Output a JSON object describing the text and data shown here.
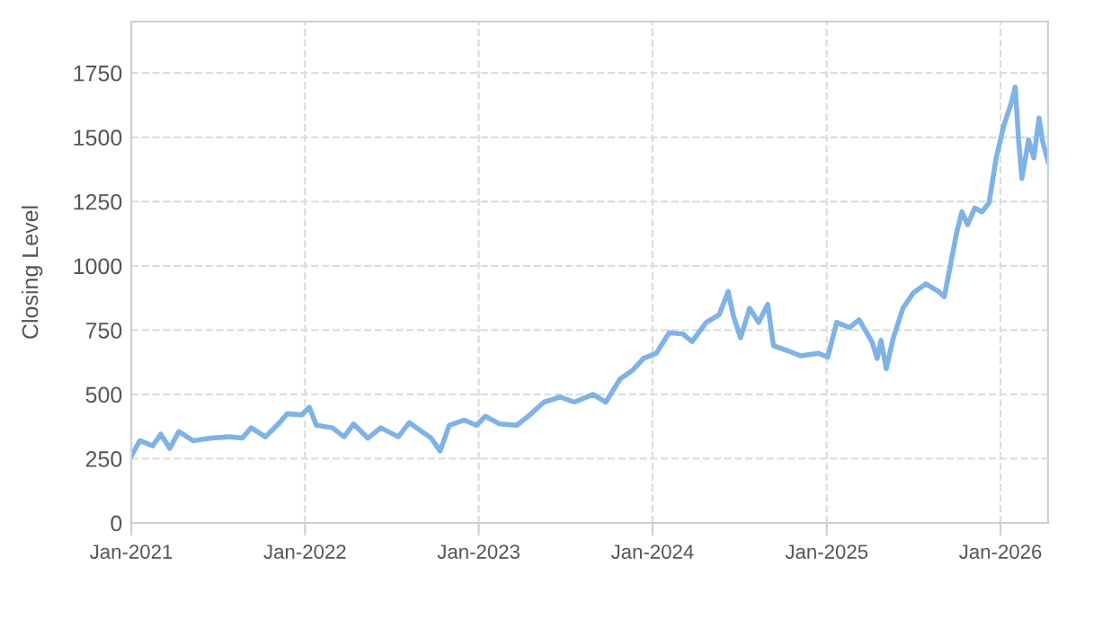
{
  "chart_data": {
    "type": "line",
    "ylabel": "Closing Level",
    "x": [
      "2021-01-01",
      "2021-01-19",
      "2021-02-15",
      "2021-03-04",
      "2021-03-23",
      "2021-04-11",
      "2021-05-11",
      "2021-06-18",
      "2021-07-26",
      "2021-08-22",
      "2021-09-10",
      "2021-10-10",
      "2021-11-06",
      "2021-11-25",
      "2021-12-25",
      "2022-01-10",
      "2022-01-25",
      "2022-02-28",
      "2022-03-24",
      "2022-04-13",
      "2022-05-13",
      "2022-06-09",
      "2022-07-16",
      "2022-08-08",
      "2022-09-04",
      "2022-09-23",
      "2022-10-12",
      "2022-10-31",
      "2022-12-01",
      "2022-12-27",
      "2023-01-15",
      "2023-02-14",
      "2023-03-22",
      "2023-04-18",
      "2023-05-18",
      "2023-06-21",
      "2023-07-21",
      "2023-08-29",
      "2023-09-25",
      "2023-10-25",
      "2023-11-21",
      "2023-12-13",
      "2024-01-09",
      "2024-02-05",
      "2024-03-05",
      "2024-03-24",
      "2024-04-23",
      "2024-05-20",
      "2024-06-08",
      "2024-06-19",
      "2024-07-04",
      "2024-07-23",
      "2024-08-11",
      "2024-08-30",
      "2024-09-11",
      "2024-10-11",
      "2024-11-07",
      "2024-12-14",
      "2025-01-03",
      "2025-01-22",
      "2025-02-18",
      "2025-03-10",
      "2025-04-06",
      "2025-04-17",
      "2025-04-25",
      "2025-05-06",
      "2025-05-21",
      "2025-06-10",
      "2025-07-02",
      "2025-07-28",
      "2025-08-24",
      "2025-09-05",
      "2025-09-16",
      "2025-10-01",
      "2025-10-12",
      "2025-10-24",
      "2025-11-08",
      "2025-11-23",
      "2025-12-08",
      "2025-12-23",
      "2026-01-08",
      "2026-01-23",
      "2026-02-01",
      "2026-02-08",
      "2026-02-15",
      "2026-03-01",
      "2026-03-12",
      "2026-03-23",
      "2026-03-31",
      "2026-04-11"
    ],
    "series": [
      {
        "color": "#7fb3e6",
        "values": [
          260,
          320,
          300,
          345,
          290,
          355,
          320,
          330,
          335,
          330,
          370,
          335,
          385,
          425,
          420,
          450,
          380,
          370,
          335,
          385,
          330,
          370,
          335,
          390,
          355,
          330,
          280,
          380,
          400,
          380,
          415,
          385,
          380,
          420,
          470,
          490,
          470,
          500,
          470,
          560,
          595,
          640,
          660,
          740,
          735,
          705,
          780,
          810,
          900,
          805,
          720,
          835,
          780,
          850,
          690,
          670,
          650,
          660,
          645,
          780,
          760,
          790,
          705,
          640,
          710,
          600,
          720,
          835,
          895,
          930,
          900,
          880,
          985,
          1130,
          1210,
          1160,
          1225,
          1210,
          1245,
          1420,
          1545,
          1630,
          1695,
          1490,
          1340,
          1490,
          1420,
          1575,
          1480,
          1405
        ]
      }
    ],
    "xlim": [
      "2021-01-01",
      "2026-04-11"
    ],
    "xticks": [
      {
        "value": "2021-01-01",
        "label": "Jan-2021"
      },
      {
        "value": "2022-01-01",
        "label": "Jan-2022"
      },
      {
        "value": "2023-01-01",
        "label": "Jan-2023"
      },
      {
        "value": "2024-01-01",
        "label": "Jan-2024"
      },
      {
        "value": "2025-01-01",
        "label": "Jan-2025"
      },
      {
        "value": "2026-01-01",
        "label": "Jan-2026"
      }
    ],
    "ylim": [
      0,
      1950
    ],
    "yticks": [
      0,
      250,
      500,
      750,
      1000,
      1250,
      1500,
      1750
    ],
    "grid": true,
    "line_style": "solid",
    "marker": "none"
  }
}
